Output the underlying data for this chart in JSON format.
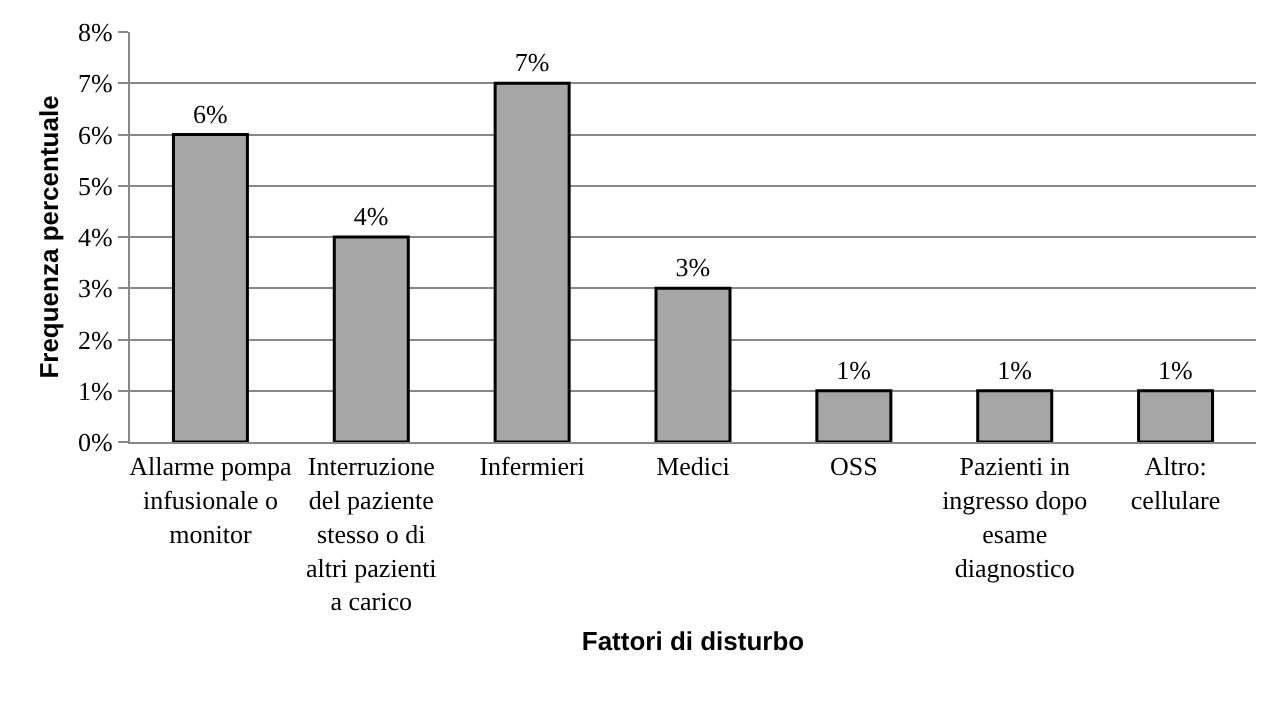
{
  "chart_data": {
    "type": "bar",
    "xlabel": "Fattori di disturbo",
    "ylabel": "Frequenza percentuale",
    "categories": [
      "Allarme pompa infusionale o monitor",
      "Interruzione del paziente stesso o di altri pazienti a carico",
      "Infermieri",
      "Medici",
      "OSS",
      "Pazienti in ingresso dopo esame diagnostico",
      "Altro: cellulare"
    ],
    "values": [
      6,
      4,
      7,
      3,
      1,
      1,
      1
    ],
    "value_labels": [
      "6%",
      "4%",
      "7%",
      "3%",
      "1%",
      "1%",
      "1%"
    ],
    "color": "#a6a6a6",
    "ylim": [
      0,
      8
    ],
    "yticks": [
      {
        "value": 0,
        "label": "0%"
      },
      {
        "value": 1,
        "label": "1%"
      },
      {
        "value": 2,
        "label": "2%"
      },
      {
        "value": 3,
        "label": "3%"
      },
      {
        "value": 4,
        "label": "4%"
      },
      {
        "value": 5,
        "label": "5%"
      },
      {
        "value": 6,
        "label": "6%"
      },
      {
        "value": 7,
        "label": "7%"
      },
      {
        "value": 8,
        "label": "8%"
      }
    ],
    "grid": "y"
  }
}
